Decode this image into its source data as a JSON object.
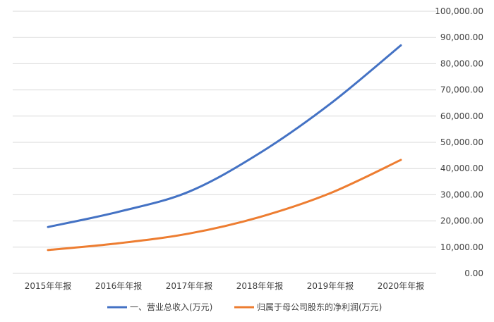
{
  "chart_data": {
    "type": "line",
    "title": "",
    "xlabel": "",
    "ylabel": "",
    "categories": [
      "2015年年报",
      "2016年年报",
      "2017年年报",
      "2018年年报",
      "2019年年报",
      "2020年年报"
    ],
    "ylim": [
      0,
      100000
    ],
    "y_ticks": [
      0,
      10000,
      20000,
      30000,
      40000,
      50000,
      60000,
      70000,
      80000,
      90000,
      100000
    ],
    "y_tick_labels": [
      "0.00",
      "10,000.00",
      "20,000.00",
      "30,000.00",
      "40,000.00",
      "50,000.00",
      "60,000.00",
      "70,000.00",
      "80,000.00",
      "90,000.00",
      "100,000.00"
    ],
    "y_axis_side": "right",
    "grid": true,
    "legend_position": "bottom",
    "series": [
      {
        "name": "一、营业总收入(万元)",
        "color": "#4472c4",
        "values": [
          17700,
          23500,
          31200,
          45900,
          64700,
          87000
        ]
      },
      {
        "name": "归属于母公司股东的净利润(万元)",
        "color": "#ed7d31",
        "values": [
          8900,
          11500,
          15200,
          21500,
          30600,
          43300
        ]
      }
    ]
  }
}
